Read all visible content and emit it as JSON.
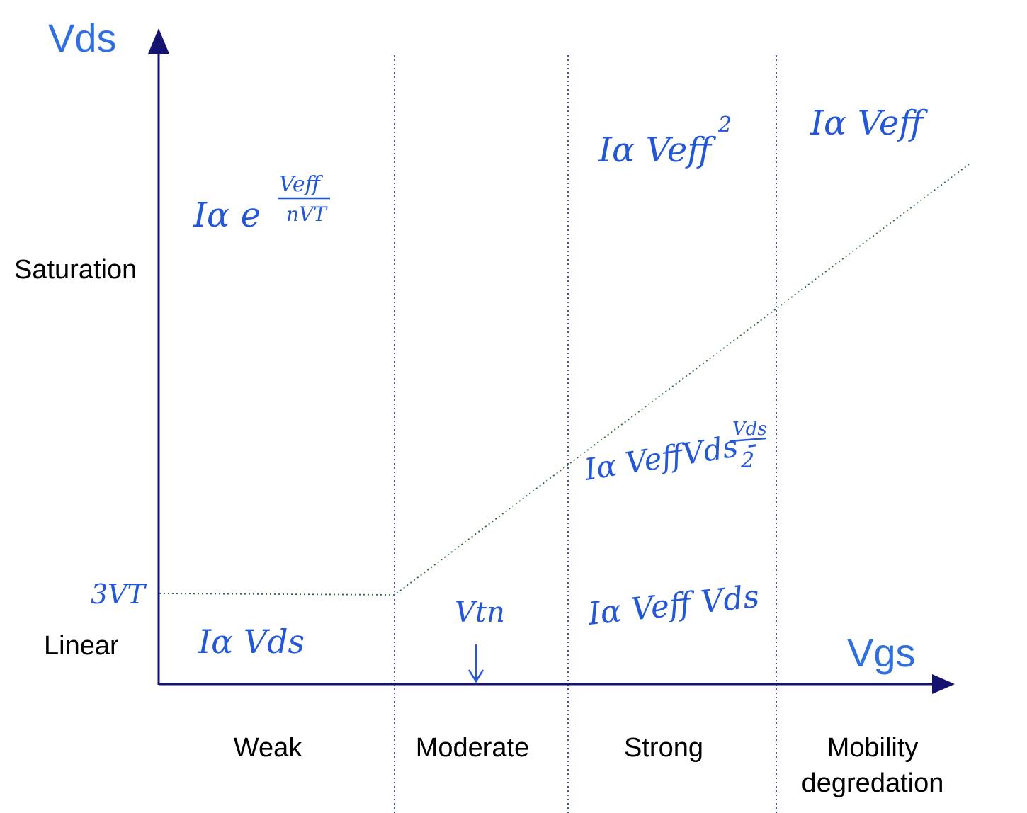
{
  "axes": {
    "y_title": "Vds",
    "x_title": "Vgs"
  },
  "side_labels": {
    "saturation": "Saturation",
    "linear": "Linear",
    "three_vt": "3VT"
  },
  "regions": {
    "weak": "Weak",
    "moderate": "Moderate",
    "strong": "Strong",
    "mobility_line1": "Mobility",
    "mobility_line2": "degredation"
  },
  "vth_marker": "Vtn",
  "equations": {
    "weak_sat_base": "Iα e",
    "weak_sat_num": "Veff",
    "weak_sat_den": "nVT",
    "strong_sat_main": "Iα Veff",
    "strong_sat_exp": "2",
    "mobility_sat": "Iα Veff",
    "triode_main": "Iα VeffVds -",
    "triode_num": "Vds",
    "triode_den": "2",
    "strong_lin": "Iα Veff Vds",
    "weak_lin": "Iα Vds"
  },
  "colors": {
    "axis": "#141470",
    "accent_blue": "#2f6fe0",
    "ink_blue": "#2457d6",
    "boundary_green": "#2f6b3a",
    "divider": "#1d2a80"
  }
}
